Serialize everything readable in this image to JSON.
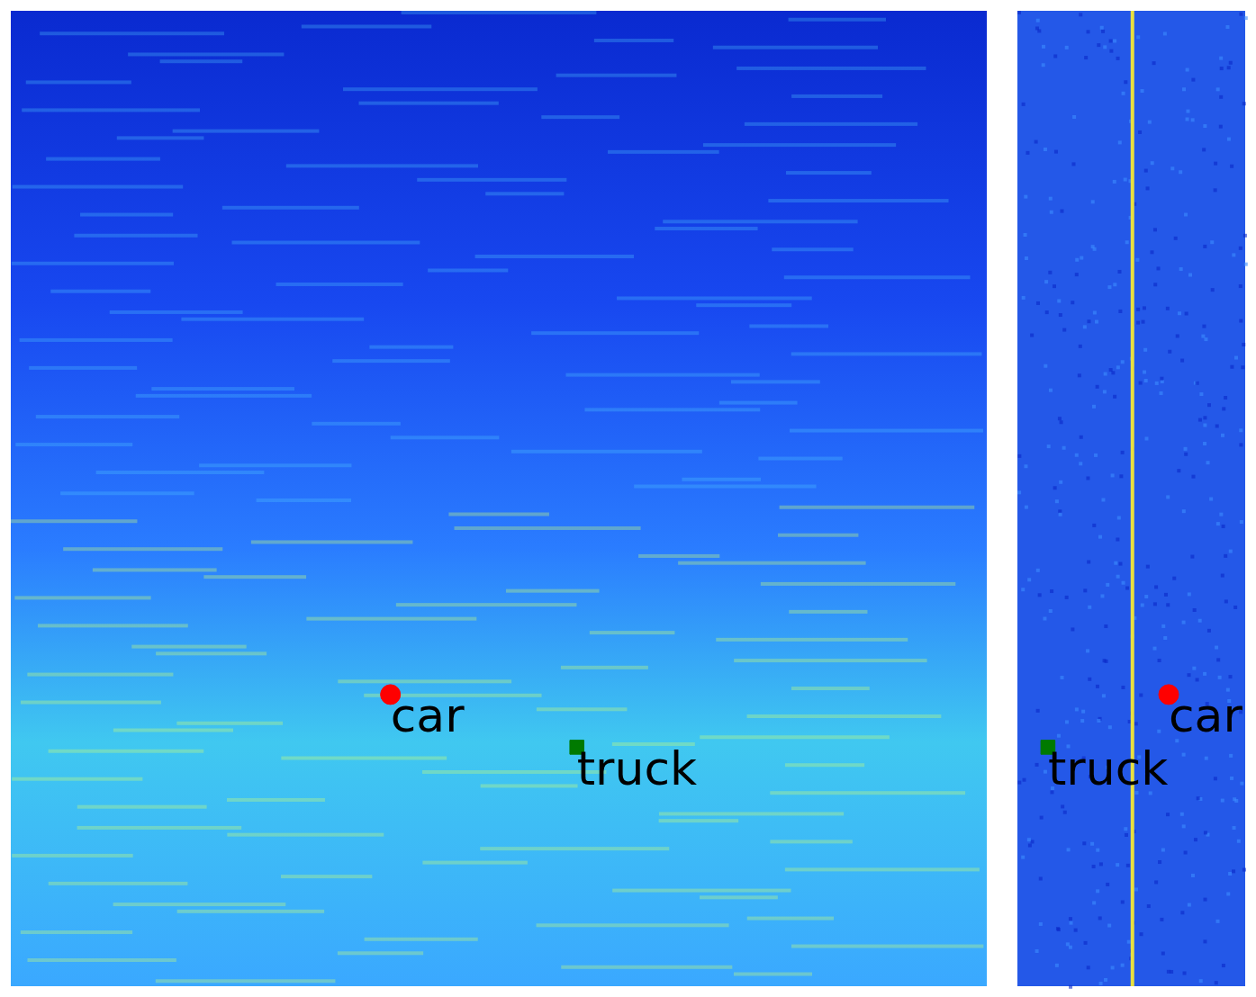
{
  "chart_data": [
    {
      "type": "scatter",
      "xlim": [
        0,
        1
      ],
      "ylim": [
        0,
        1
      ],
      "tick_labels": false,
      "grid": false,
      "series": [
        {
          "name": "car",
          "color": "#ff0000",
          "marker": "circle",
          "x": [
            0.389
          ],
          "y": [
            0.299
          ]
        },
        {
          "name": "truck",
          "color": "#007a00",
          "marker": "square",
          "x": [
            0.58
          ],
          "y": [
            0.245
          ]
        }
      ]
    },
    {
      "type": "scatter",
      "xlim": [
        0,
        1
      ],
      "ylim": [
        0,
        1
      ],
      "tick_labels": false,
      "grid": false,
      "zero_line_x": 0.505,
      "series": [
        {
          "name": "car",
          "color": "#ff0000",
          "marker": "circle",
          "x": [
            0.664
          ],
          "y": [
            0.299
          ]
        },
        {
          "name": "truck",
          "color": "#007a00",
          "marker": "square",
          "x": [
            0.134
          ],
          "y": [
            0.245
          ]
        }
      ]
    }
  ]
}
